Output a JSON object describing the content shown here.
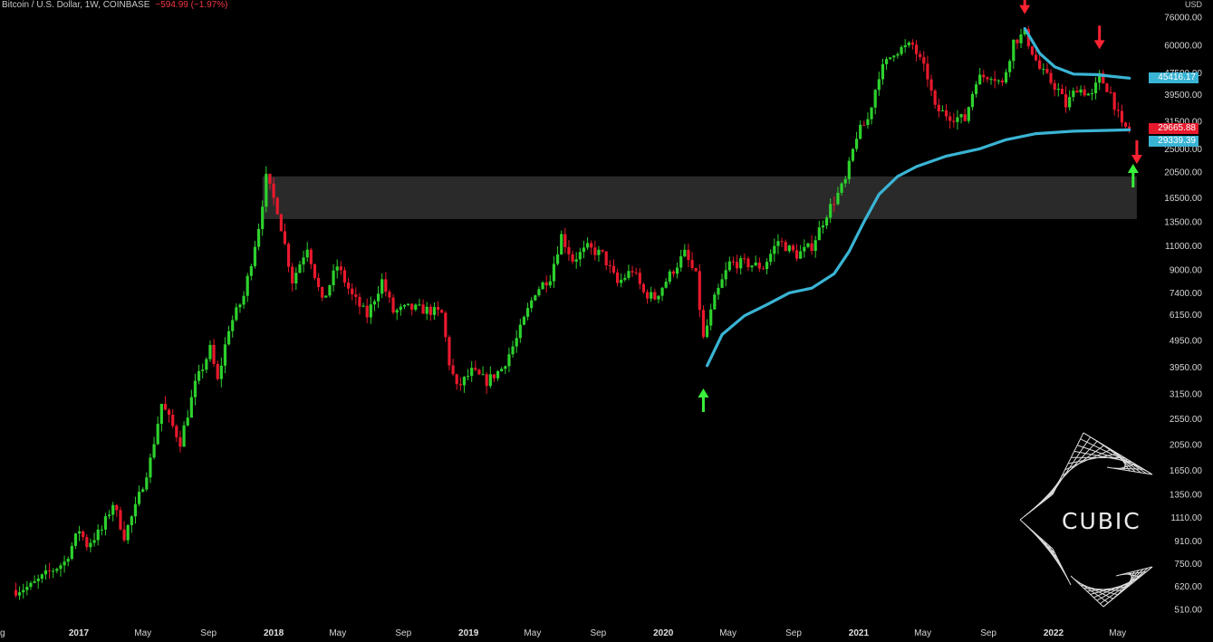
{
  "header": {
    "symbol_info": "Bitcoin / U.S. Dollar, 1W, COINBASE",
    "change": "−594.99 (−1.97%)"
  },
  "currency": "USD",
  "logo": {
    "text": "CUBIC"
  },
  "colors": {
    "background": "#000000",
    "up": "#2dd12d",
    "down": "#e8192c",
    "ma": "#3ab4d4",
    "zone": "#2a2a2a",
    "arrow_up": "#39f03a",
    "arrow_down": "#ff2232"
  },
  "price_labels": [
    {
      "text": "45416.17",
      "color": "#3ab4d4"
    },
    {
      "text": "29665.88",
      "color": "#e8192c"
    },
    {
      "text": "29339.39",
      "color": "#3ab4d4"
    }
  ],
  "chart_data": {
    "type": "candlestick",
    "title": "Bitcoin / U.S. Dollar, 1W, COINBASE",
    "y_scale": "log",
    "ylim": [
      480,
      80000
    ],
    "y_ticks": [
      "76000.00",
      "60000.00",
      "47500.00",
      "39500.00",
      "31500.00",
      "25000.00",
      "20500.00",
      "16500.00",
      "13500.00",
      "11000.00",
      "9000.00",
      "7400.00",
      "6150.00",
      "4950.00",
      "3950.00",
      "3150.00",
      "2550.00",
      "2050.00",
      "1650.00",
      "1350.00",
      "1110.00",
      "910.00",
      "750.00",
      "620.00",
      "510.00"
    ],
    "x_ticks": [
      {
        "label": "g",
        "date": "2016-08-01"
      },
      {
        "label": "2017",
        "date": "2017-01-01",
        "bold": true
      },
      {
        "label": "May",
        "date": "2017-05-01"
      },
      {
        "label": "Sep",
        "date": "2017-09-01"
      },
      {
        "label": "2018",
        "date": "2018-01-01",
        "bold": true
      },
      {
        "label": "May",
        "date": "2018-05-01"
      },
      {
        "label": "Sep",
        "date": "2018-09-01"
      },
      {
        "label": "2019",
        "date": "2019-01-01",
        "bold": true
      },
      {
        "label": "May",
        "date": "2019-05-01"
      },
      {
        "label": "Sep",
        "date": "2019-09-01"
      },
      {
        "label": "2020",
        "date": "2020-01-01",
        "bold": true
      },
      {
        "label": "May",
        "date": "2020-05-01"
      },
      {
        "label": "Sep",
        "date": "2020-09-01"
      },
      {
        "label": "2021",
        "date": "2021-01-01",
        "bold": true
      },
      {
        "label": "May",
        "date": "2021-05-01"
      },
      {
        "label": "Sep",
        "date": "2021-09-01"
      },
      {
        "label": "2022",
        "date": "2022-01-01",
        "bold": true
      },
      {
        "label": "May",
        "date": "2022-05-01"
      }
    ],
    "price_path": [
      [
        "2016-09-05",
        600
      ],
      [
        "2016-10-03",
        620
      ],
      [
        "2016-11-07",
        700
      ],
      [
        "2016-12-05",
        760
      ],
      [
        "2017-01-02",
        1000
      ],
      [
        "2017-01-16",
        880
      ],
      [
        "2017-02-13",
        1000
      ],
      [
        "2017-03-06",
        1250
      ],
      [
        "2017-03-27",
        950
      ],
      [
        "2017-04-17",
        1200
      ],
      [
        "2017-05-15",
        1800
      ],
      [
        "2017-06-05",
        2900
      ],
      [
        "2017-07-10",
        2100
      ],
      [
        "2017-08-07",
        3400
      ],
      [
        "2017-09-04",
        4600
      ],
      [
        "2017-09-18",
        3500
      ],
      [
        "2017-10-09",
        5500
      ],
      [
        "2017-11-06",
        7200
      ],
      [
        "2017-12-04",
        13000
      ],
      [
        "2017-12-18",
        19500
      ],
      [
        "2018-01-08",
        15000
      ],
      [
        "2018-02-05",
        8200
      ],
      [
        "2018-03-05",
        11000
      ],
      [
        "2018-04-02",
        6800
      ],
      [
        "2018-04-30",
        9300
      ],
      [
        "2018-05-28",
        7200
      ],
      [
        "2018-06-25",
        6100
      ],
      [
        "2018-07-23",
        8200
      ],
      [
        "2018-08-13",
        6300
      ],
      [
        "2018-09-10",
        6500
      ],
      [
        "2018-10-15",
        6400
      ],
      [
        "2018-11-12",
        6200
      ],
      [
        "2018-11-26",
        4100
      ],
      [
        "2018-12-10",
        3300
      ],
      [
        "2019-01-07",
        3800
      ],
      [
        "2019-02-04",
        3500
      ],
      [
        "2019-03-04",
        3900
      ],
      [
        "2019-04-01",
        5000
      ],
      [
        "2019-05-06",
        7500
      ],
      [
        "2019-06-03",
        8500
      ],
      [
        "2019-06-24",
        12000
      ],
      [
        "2019-07-15",
        9800
      ],
      [
        "2019-08-12",
        10800
      ],
      [
        "2019-09-09",
        10200
      ],
      [
        "2019-10-07",
        8000
      ],
      [
        "2019-11-04",
        9000
      ],
      [
        "2019-11-25",
        7400
      ],
      [
        "2019-12-16",
        7100
      ],
      [
        "2020-01-13",
        8600
      ],
      [
        "2020-02-10",
        10300
      ],
      [
        "2020-03-02",
        8500
      ],
      [
        "2020-03-16",
        5000
      ],
      [
        "2020-04-06",
        7000
      ],
      [
        "2020-05-04",
        9500
      ],
      [
        "2020-06-01",
        9500
      ],
      [
        "2020-07-06",
        9200
      ],
      [
        "2020-08-03",
        11500
      ],
      [
        "2020-09-07",
        10200
      ],
      [
        "2020-10-05",
        11000
      ],
      [
        "2020-11-02",
        14500
      ],
      [
        "2020-12-07",
        19000
      ],
      [
        "2020-12-28",
        28000
      ],
      [
        "2021-01-18",
        32000
      ],
      [
        "2021-02-08",
        47000
      ],
      [
        "2021-03-08",
        57000
      ],
      [
        "2021-04-12",
        60000
      ],
      [
        "2021-05-10",
        46000
      ],
      [
        "2021-05-24",
        35000
      ],
      [
        "2021-06-21",
        33000
      ],
      [
        "2021-07-19",
        32000
      ],
      [
        "2021-08-09",
        45000
      ],
      [
        "2021-09-06",
        47000
      ],
      [
        "2021-09-27",
        43000
      ],
      [
        "2021-10-18",
        62000
      ],
      [
        "2021-11-08",
        66000
      ],
      [
        "2021-12-06",
        49000
      ],
      [
        "2022-01-10",
        41000
      ],
      [
        "2022-01-24",
        36000
      ],
      [
        "2022-02-14",
        42000
      ],
      [
        "2022-03-14",
        39000
      ],
      [
        "2022-03-28",
        46000
      ],
      [
        "2022-04-18",
        40000
      ],
      [
        "2022-05-09",
        30000
      ],
      [
        "2022-05-23",
        29665.88
      ]
    ],
    "ma_path": [
      [
        "2020-03-23",
        4000
      ],
      [
        "2020-04-20",
        5200
      ],
      [
        "2020-06-01",
        6100
      ],
      [
        "2020-07-13",
        6700
      ],
      [
        "2020-08-24",
        7400
      ],
      [
        "2020-10-05",
        7700
      ],
      [
        "2020-11-16",
        8700
      ],
      [
        "2020-12-14",
        10500
      ],
      [
        "2021-01-11",
        13500
      ],
      [
        "2021-02-08",
        17000
      ],
      [
        "2021-03-15",
        19800
      ],
      [
        "2021-04-19",
        21500
      ],
      [
        "2021-06-14",
        23500
      ],
      [
        "2021-08-16",
        25000
      ],
      [
        "2021-10-04",
        27000
      ],
      [
        "2021-11-29",
        28400
      ],
      [
        "2022-02-07",
        29000
      ],
      [
        "2022-05-23",
        29339.39
      ]
    ],
    "ma_upper_path": [
      [
        "2021-11-08",
        69000
      ],
      [
        "2021-12-06",
        56000
      ],
      [
        "2022-01-03",
        50000
      ],
      [
        "2022-02-07",
        47000
      ],
      [
        "2022-03-21",
        46800
      ],
      [
        "2022-04-25",
        46000
      ],
      [
        "2022-05-23",
        45416.17
      ]
    ],
    "zone": {
      "low": 13800,
      "high": 19800,
      "from": "2017-12-11",
      "to": "2022-06-06"
    },
    "arrows": [
      {
        "dir": "down",
        "date": "2021-11-08",
        "price": 78000
      },
      {
        "dir": "down",
        "date": "2022-03-28",
        "price": 58000
      },
      {
        "dir": "up",
        "date": "2020-03-16",
        "price": 3300
      },
      {
        "dir": "up",
        "date": "2022-05-30",
        "price": 22000
      },
      {
        "dir": "down",
        "date": "2022-06-06",
        "price": 22000
      }
    ]
  }
}
